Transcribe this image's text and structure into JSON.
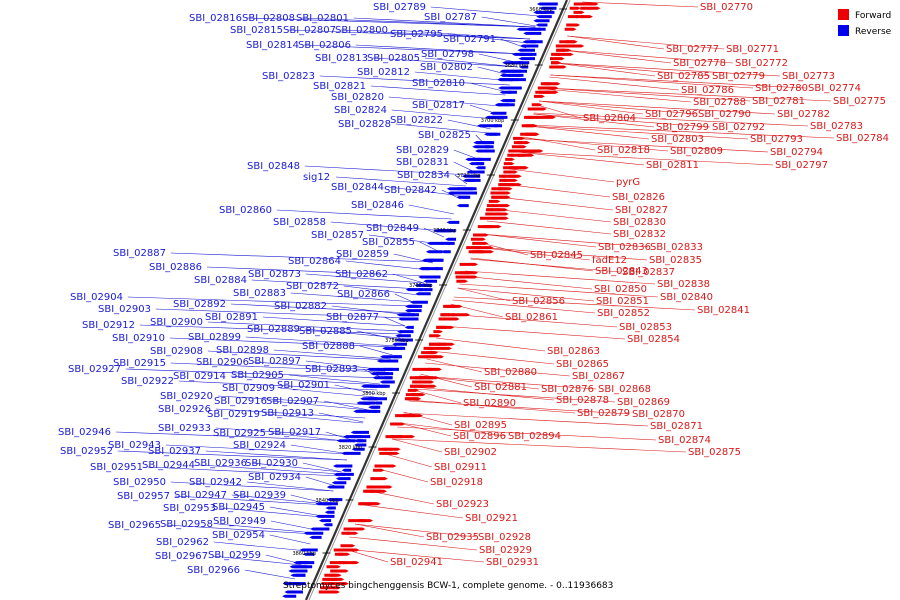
{
  "caption": "Streptomyces bingchenggensis BCW-1, complete genome. - 0..11936683",
  "legend": [
    {
      "label": "Forward",
      "color": "#ee0000"
    },
    {
      "label": "Reverse",
      "color": "#0000ee"
    }
  ],
  "kbp_marks": [
    "3660 kbp",
    "3680 kbp",
    "3700 kbp",
    "3720 kbp",
    "3740 kbp",
    "3760 kbp",
    "3780 kbp",
    "3800 kbp",
    "3820 kbp",
    "3840 kbp",
    "3860 kbp"
  ],
  "reverse_labels": [
    "SBI_02789",
    "SBI_02816",
    "SBI_02808",
    "SBI_02801",
    "SBI_02787",
    "SBI_02815",
    "SBI_02807",
    "SBI_02800",
    "SBI_02795",
    "SBI_02791",
    "SBI_02814",
    "SBI_02806",
    "SBI_02798",
    "SBI_02813",
    "SBI_02805",
    "SBI_02802",
    "SBI_02823",
    "SBI_02812",
    "SBI_02821",
    "SBI_02810",
    "SBI_02820",
    "SBI_02817",
    "SBI_02824",
    "SBI_02822",
    "SBI_02828",
    "SBI_02825",
    "SBI_02829",
    "SBI_02831",
    "SBI_02848",
    "SBI_02834",
    "sig12",
    "SBI_02844",
    "SBI_02842",
    "SBI_02846",
    "SBI_02860",
    "SBI_02858",
    "SBI_02849",
    "SBI_02857",
    "SBI_02855",
    "SBI_02859",
    "SBI_02887",
    "SBI_02864",
    "SBI_02886",
    "SBI_02862",
    "SBI_02884",
    "SBI_02873",
    "SBI_02872",
    "SBI_02883",
    "SBI_02866",
    "SBI_02904",
    "SBI_02892",
    "SBI_02882",
    "SBI_02903",
    "SBI_02877",
    "SBI_02891",
    "SBI_02912",
    "SBI_02900",
    "SBI_02889",
    "SBI_02885",
    "SBI_02910",
    "SBI_02899",
    "SBI_02888",
    "SBI_02908",
    "SBI_02898",
    "SBI_02915",
    "SBI_02906",
    "SBI_02897",
    "SBI_02893",
    "SBI_02927",
    "SBI_02914",
    "SBI_02905",
    "SBI_02922",
    "SBI_02901",
    "SBI_02909",
    "SBI_02920",
    "SBI_02916",
    "SBI_02907",
    "SBI_02926",
    "SBI_02919",
    "SBI_02913",
    "SBI_02933",
    "SBI_02925",
    "SBI_02917",
    "SBI_02946",
    "SBI_02943",
    "SBI_02924",
    "SBI_02952",
    "SBI_02937",
    "SBI_02951",
    "SBI_02944",
    "SBI_02936",
    "SBI_02930",
    "SBI_02934",
    "SBI_02950",
    "SBI_02942",
    "SBI_02957",
    "SBI_02947",
    "SBI_02939",
    "SBI_02953",
    "SBI_02945",
    "SBI_02965",
    "SBI_02958",
    "SBI_02949",
    "SBI_02954",
    "SBI_02962",
    "SBI_02967",
    "SBI_02959",
    "SBI_02966"
  ],
  "forward_labels": [
    "SBI_02770",
    "SBI_02777",
    "SBI_02771",
    "SBI_02778",
    "SBI_02772",
    "SBI_02785",
    "SBI_02779",
    "SBI_02773",
    "SBI_02786",
    "SBI_02780",
    "SBI_02774",
    "SBI_02788",
    "SBI_02781",
    "SBI_02775",
    "SBI_02796",
    "SBI_02790",
    "SBI_02782",
    "SBI_02804",
    "SBI_02799",
    "SBI_02792",
    "SBI_02783",
    "SBI_02803",
    "SBI_02793",
    "SBI_02784",
    "SBI_02809",
    "SBI_02794",
    "SBI_02818",
    "SBI_02797",
    "SBI_02811",
    "pyrG",
    "SBI_02826",
    "SBI_02827",
    "SBI_02830",
    "SBI_02832",
    "SBI_02836",
    "SBI_02833",
    "SBI_02845",
    "fadE12",
    "SBI_02835",
    "SBI_02843",
    "SBI_02837",
    "SBI_02838",
    "SBI_02850",
    "SBI_02840",
    "SBI_02856",
    "SBI_02851",
    "SBI_02841",
    "SBI_02852",
    "SBI_02861",
    "SBI_02853",
    "SBI_02854",
    "SBI_02863",
    "SBI_02865",
    "SBI_02880",
    "SBI_02867",
    "SBI_02881",
    "SBI_02876",
    "SBI_02868",
    "SBI_02878",
    "SBI_02869",
    "SBI_02890",
    "SBI_02879",
    "SBI_02870",
    "SBI_02895",
    "SBI_02871",
    "SBI_02896",
    "SBI_02894",
    "SBI_02874",
    "SBI_02875",
    "SBI_02902",
    "SBI_02911",
    "SBI_02918",
    "SBI_02923",
    "SBI_02921",
    "SBI_02935",
    "SBI_02928",
    "SBI_02929",
    "SBI_02941",
    "SBI_02931"
  ]
}
